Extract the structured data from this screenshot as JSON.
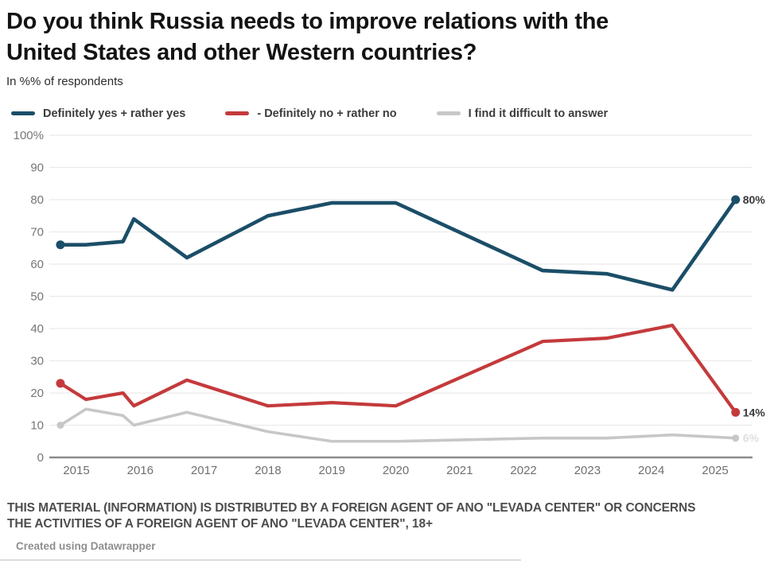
{
  "title": {
    "line1": "Do you think Russia needs to improve relations with the",
    "line2": "United States and other Western countries?"
  },
  "subtitle": "In %% of respondents",
  "legend": [
    {
      "label": "Definitely yes + rather yes",
      "color": "#1b4e68",
      "icon": "line-swatch"
    },
    {
      "label": "- Definitely no + rather no",
      "color": "#c43a3c",
      "icon": "line-swatch"
    },
    {
      "label": "I find it difficult to answer",
      "color": "#c7c7c7",
      "icon": "line-swatch"
    }
  ],
  "chart_data": {
    "type": "line",
    "title": "Do you think Russia needs to improve relations with the United States and other Western countries?",
    "subtitle": "In %% of respondents",
    "x": [
      2014.75,
      2015.15,
      2015.73,
      2015.9,
      2016.73,
      2018.0,
      2019.0,
      2020.0,
      2022.3,
      2023.3,
      2024.33,
      2025.32
    ],
    "x_tick_labels": [
      "2015",
      "2016",
      "2017",
      "2018",
      "2019",
      "2020",
      "2021",
      "2022",
      "2023",
      "2024",
      "2025"
    ],
    "xlim": [
      2014.55,
      2025.6
    ],
    "y_ticks": [
      0,
      10,
      20,
      30,
      40,
      50,
      60,
      70,
      80,
      90,
      100
    ],
    "y_tick_labels": [
      "0",
      "10",
      "20",
      "30",
      "40",
      "50",
      "60",
      "70",
      "80",
      "90",
      "100%"
    ],
    "ylim": [
      0,
      100
    ],
    "grid": "horizontal",
    "legend_position": "top",
    "series": [
      {
        "name": "Definitely yes + rather yes",
        "color": "#1b4e68",
        "values": [
          66,
          66,
          67,
          74,
          62,
          75,
          79,
          79,
          58,
          57,
          52,
          80
        ],
        "end_label": "80%",
        "end_label_color": "#3a3a3a"
      },
      {
        "name": "- Definitely no + rather no",
        "color": "#c43a3c",
        "values": [
          23,
          18,
          20,
          16,
          24,
          16,
          17,
          16,
          36,
          37,
          41,
          14
        ],
        "end_label": "14%",
        "end_label_color": "#3a3a3a"
      },
      {
        "name": "I find it difficult to answer",
        "color": "#c7c7c7",
        "values": [
          10,
          15,
          13,
          10,
          14,
          8,
          5,
          5,
          6,
          6,
          7,
          6
        ],
        "end_label": "6%",
        "end_label_color": "#e0e0e0"
      }
    ]
  },
  "footer": {
    "disclaimer_line1": "THIS MATERIAL (INFORMATION) IS DISTRIBUTED BY A FOREIGN AGENT OF ANO \"LEVADA CENTER\" OR CONCERNS",
    "disclaimer_line2": "THE ACTIVITIES OF A FOREIGN AGENT OF ANO \"LEVADA CENTER\", 18+",
    "credit": "Created using Datawrapper"
  }
}
